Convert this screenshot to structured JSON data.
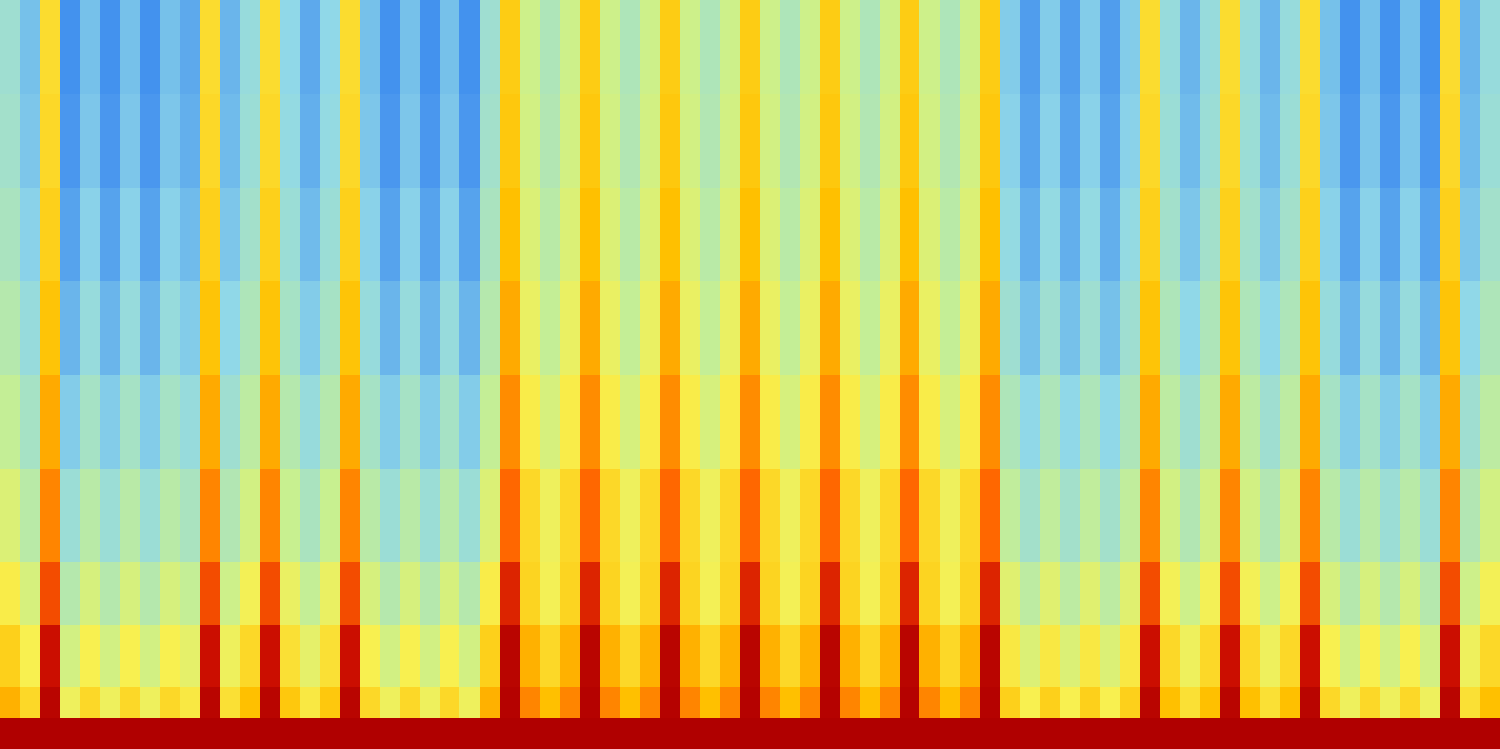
{
  "chart_data": {
    "type": "heatmap",
    "tick_labels": false,
    "y_bins": [
      0,
      1,
      2,
      4,
      6,
      9,
      12,
      15,
      18,
      21,
      24
    ],
    "zlim": [
      0,
      100
    ],
    "cells": [
      [
        100,
        100,
        100,
        100,
        100,
        100,
        100,
        100,
        100,
        100,
        100,
        100,
        100,
        100,
        100,
        100,
        100,
        100,
        100,
        100,
        100,
        100,
        100,
        100,
        100,
        100,
        100,
        100,
        100,
        100,
        100,
        100,
        100,
        100,
        100,
        100,
        100,
        100,
        100,
        100,
        100,
        100,
        100,
        100,
        100,
        100,
        100,
        100,
        100,
        100,
        100,
        100,
        100,
        100,
        100,
        100,
        100,
        100,
        100,
        100,
        100,
        100,
        100,
        100,
        100,
        100,
        100,
        100,
        100,
        100,
        100,
        100,
        100,
        100,
        100
      ],
      [
        74,
        66,
        98,
        58,
        66,
        58,
        66,
        58,
        66,
        62,
        98,
        64,
        72,
        98,
        70,
        62,
        70,
        98,
        66,
        58,
        66,
        58,
        66,
        58,
        74,
        99,
        80,
        72,
        80,
        99,
        80,
        72,
        80,
        99,
        80,
        72,
        80,
        99,
        80,
        72,
        80,
        99,
        80,
        72,
        80,
        99,
        80,
        72,
        80,
        99,
        68,
        60,
        68,
        60,
        68,
        60,
        68,
        98,
        72,
        64,
        72,
        98,
        72,
        64,
        72,
        98,
        66,
        58,
        66,
        58,
        66,
        58,
        98,
        64,
        72
      ],
      [
        68,
        60,
        94,
        52,
        60,
        52,
        60,
        52,
        60,
        56,
        94,
        58,
        66,
        94,
        64,
        56,
        64,
        94,
        60,
        52,
        60,
        52,
        60,
        52,
        68,
        98,
        74,
        66,
        74,
        98,
        74,
        66,
        74,
        98,
        74,
        66,
        74,
        98,
        74,
        66,
        74,
        98,
        74,
        66,
        74,
        98,
        74,
        66,
        74,
        98,
        62,
        54,
        62,
        54,
        62,
        54,
        62,
        94,
        66,
        58,
        66,
        94,
        66,
        58,
        66,
        94,
        60,
        52,
        60,
        52,
        60,
        52,
        94,
        58,
        66
      ],
      [
        61,
        53,
        87,
        45,
        53,
        45,
        53,
        45,
        53,
        49,
        87,
        51,
        59,
        87,
        57,
        49,
        57,
        87,
        53,
        45,
        53,
        45,
        53,
        45,
        61,
        91,
        67,
        59,
        67,
        91,
        67,
        59,
        67,
        91,
        67,
        59,
        67,
        91,
        67,
        59,
        67,
        91,
        67,
        59,
        67,
        91,
        67,
        59,
        67,
        91,
        55,
        47,
        55,
        47,
        55,
        47,
        55,
        87,
        59,
        51,
        59,
        87,
        59,
        51,
        59,
        87,
        53,
        45,
        53,
        45,
        53,
        45,
        87,
        51,
        59
      ],
      [
        54,
        46,
        80,
        38,
        46,
        38,
        46,
        38,
        46,
        42,
        80,
        44,
        52,
        80,
        50,
        42,
        50,
        80,
        46,
        38,
        46,
        38,
        46,
        38,
        54,
        84,
        66,
        58,
        66,
        84,
        66,
        58,
        66,
        84,
        66,
        58,
        66,
        84,
        66,
        58,
        66,
        84,
        66,
        58,
        66,
        84,
        66,
        58,
        66,
        84,
        48,
        40,
        48,
        40,
        48,
        40,
        48,
        80,
        52,
        44,
        52,
        80,
        52,
        44,
        52,
        80,
        46,
        38,
        46,
        38,
        46,
        38,
        80,
        44,
        52
      ],
      [
        49,
        41,
        75,
        33,
        41,
        33,
        41,
        33,
        41,
        37,
        75,
        39,
        47,
        75,
        45,
        37,
        45,
        75,
        41,
        33,
        41,
        33,
        41,
        33,
        49,
        79,
        61,
        53,
        61,
        79,
        61,
        53,
        61,
        79,
        61,
        53,
        61,
        79,
        61,
        53,
        61,
        79,
        61,
        53,
        61,
        79,
        61,
        53,
        61,
        79,
        43,
        35,
        43,
        35,
        43,
        35,
        43,
        75,
        47,
        39,
        47,
        75,
        47,
        39,
        47,
        75,
        41,
        33,
        41,
        33,
        41,
        33,
        75,
        39,
        47
      ],
      [
        45,
        37,
        71,
        29,
        37,
        29,
        37,
        29,
        37,
        33,
        71,
        35,
        43,
        71,
        41,
        33,
        41,
        71,
        37,
        29,
        37,
        29,
        37,
        29,
        45,
        75,
        57,
        49,
        57,
        75,
        57,
        49,
        57,
        75,
        57,
        49,
        57,
        75,
        57,
        49,
        57,
        75,
        57,
        49,
        57,
        75,
        57,
        49,
        57,
        75,
        39,
        31,
        39,
        31,
        39,
        31,
        39,
        71,
        43,
        35,
        43,
        71,
        43,
        35,
        43,
        71,
        37,
        29,
        37,
        29,
        37,
        29,
        71,
        35,
        43
      ],
      [
        42,
        34,
        68,
        26,
        34,
        26,
        34,
        26,
        34,
        30,
        68,
        32,
        40,
        68,
        38,
        30,
        38,
        68,
        34,
        26,
        34,
        26,
        34,
        26,
        42,
        72,
        54,
        46,
        54,
        72,
        54,
        46,
        54,
        72,
        54,
        46,
        54,
        72,
        54,
        46,
        54,
        72,
        54,
        46,
        54,
        72,
        54,
        46,
        54,
        72,
        36,
        28,
        36,
        28,
        36,
        28,
        36,
        68,
        40,
        32,
        40,
        68,
        40,
        32,
        40,
        68,
        34,
        26,
        34,
        26,
        34,
        26,
        68,
        32,
        40
      ],
      [
        40,
        32,
        66,
        24,
        32,
        24,
        32,
        24,
        32,
        28,
        66,
        30,
        38,
        66,
        36,
        28,
        36,
        66,
        32,
        24,
        32,
        24,
        32,
        24,
        40,
        70,
        52,
        44,
        52,
        70,
        52,
        44,
        52,
        70,
        52,
        44,
        52,
        70,
        52,
        44,
        52,
        70,
        52,
        44,
        52,
        70,
        52,
        44,
        52,
        70,
        34,
        26,
        34,
        26,
        34,
        26,
        34,
        66,
        38,
        30,
        38,
        66,
        38,
        30,
        38,
        66,
        32,
        24,
        32,
        24,
        32,
        24,
        66,
        30,
        38
      ],
      [
        39,
        31,
        65,
        23,
        31,
        23,
        31,
        23,
        31,
        27,
        65,
        29,
        37,
        65,
        35,
        27,
        35,
        65,
        31,
        23,
        31,
        23,
        31,
        23,
        39,
        69,
        51,
        43,
        51,
        69,
        51,
        43,
        51,
        69,
        51,
        43,
        51,
        69,
        51,
        43,
        51,
        69,
        51,
        43,
        51,
        69,
        51,
        43,
        51,
        69,
        33,
        25,
        33,
        25,
        33,
        25,
        33,
        65,
        37,
        29,
        37,
        65,
        37,
        29,
        37,
        65,
        31,
        23,
        31,
        23,
        31,
        23,
        65,
        29,
        37
      ]
    ]
  }
}
